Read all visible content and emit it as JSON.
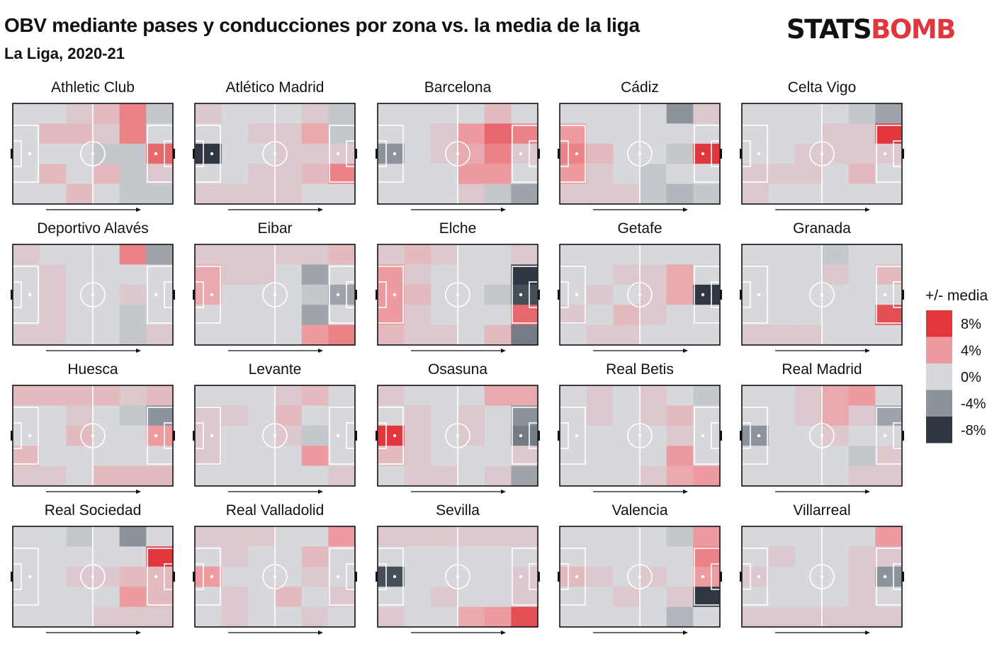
{
  "header": {
    "title": "OBV mediante pases y conducciones por zona vs. la media de la liga",
    "subtitle": "La Liga, 2020-21"
  },
  "logo": {
    "part1": "STATS",
    "part2": "BOMB",
    "text": "STATSBOMB"
  },
  "colors": {
    "scale": [
      "#2e3742",
      "#8c939b",
      "#d7d8dc",
      "#ee9ba0",
      "#e0363c"
    ],
    "zero": "#d7d8dc",
    "pitch_lines": "#ffffff",
    "pitch_border": "#111111",
    "arrow": "#111111"
  },
  "chart_data": {
    "type": "heatmap",
    "title": "OBV mediante pases y conducciones por zona vs. la media de la liga",
    "subtitle": "La Liga, 2020-21",
    "value_unit": "% vs. media de la liga",
    "grid": {
      "rows": 5,
      "cols": 6
    },
    "legend": {
      "title": "+/- media",
      "placement": "right",
      "values": [
        8,
        4,
        0,
        -4,
        -8
      ],
      "labels": [
        "8%",
        "4%",
        "0%",
        "-4%",
        "-8%"
      ]
    },
    "teams": [
      {
        "name": "Athletic Club",
        "values": [
          [
            0,
            0,
            1,
            2,
            5,
            -1
          ],
          [
            0,
            2,
            2,
            1,
            5,
            0
          ],
          [
            0,
            0,
            0,
            -1,
            -1,
            6
          ],
          [
            0,
            2,
            0,
            2,
            -1,
            1
          ],
          [
            0,
            0,
            2,
            0,
            -1,
            -1
          ]
        ]
      },
      {
        "name": "Atlético Madrid",
        "values": [
          [
            1,
            0,
            0,
            0,
            1,
            -1
          ],
          [
            0,
            0,
            1,
            1,
            3,
            -1
          ],
          [
            -8,
            0,
            0,
            1,
            1,
            1
          ],
          [
            0,
            0,
            1,
            1,
            2,
            5
          ],
          [
            1,
            1,
            1,
            1,
            0,
            0
          ]
        ]
      },
      {
        "name": "Barcelona",
        "values": [
          [
            0,
            0,
            0,
            0,
            2,
            0
          ],
          [
            0,
            0,
            1,
            4,
            6,
            5
          ],
          [
            -4,
            0,
            1,
            3,
            5,
            1
          ],
          [
            0,
            0,
            0,
            4,
            4,
            0
          ],
          [
            0,
            0,
            0,
            1,
            -1,
            -3
          ]
        ]
      },
      {
        "name": "Cádiz",
        "values": [
          [
            0,
            0,
            0,
            0,
            -4,
            1
          ],
          [
            4,
            0,
            0,
            0,
            0,
            0
          ],
          [
            5,
            2,
            0,
            0,
            -1,
            8
          ],
          [
            4,
            1,
            0,
            -1,
            0,
            0
          ],
          [
            1,
            1,
            1,
            -1,
            -2,
            -1
          ]
        ]
      },
      {
        "name": "Celta Vigo",
        "values": [
          [
            0,
            0,
            0,
            0,
            -1,
            -3
          ],
          [
            0,
            0,
            0,
            1,
            1,
            9
          ],
          [
            0,
            0,
            1,
            1,
            1,
            1
          ],
          [
            1,
            1,
            1,
            0,
            2,
            0
          ],
          [
            1,
            0,
            0,
            0,
            0,
            0
          ]
        ]
      },
      {
        "name": "Deportivo Alavés",
        "values": [
          [
            1,
            0,
            0,
            0,
            5,
            -3
          ],
          [
            0,
            1,
            0,
            0,
            0,
            0
          ],
          [
            0,
            1,
            0,
            0,
            1,
            0
          ],
          [
            0,
            1,
            0,
            0,
            -1,
            0
          ],
          [
            1,
            1,
            0,
            0,
            -1,
            1
          ]
        ]
      },
      {
        "name": "Eibar",
        "values": [
          [
            1,
            1,
            1,
            1,
            1,
            2
          ],
          [
            3,
            1,
            1,
            0,
            -3,
            0
          ],
          [
            3,
            0,
            0,
            0,
            -1,
            -3
          ],
          [
            0,
            0,
            0,
            0,
            -3,
            0
          ],
          [
            0,
            0,
            0,
            0,
            4,
            5
          ]
        ]
      },
      {
        "name": "Elche",
        "values": [
          [
            1,
            2,
            1,
            0,
            0,
            1
          ],
          [
            4,
            1,
            0,
            0,
            0,
            -8
          ],
          [
            4,
            2,
            0,
            0,
            -1,
            -7
          ],
          [
            4,
            1,
            0,
            0,
            0,
            6
          ],
          [
            2,
            1,
            1,
            0,
            2,
            -5
          ]
        ]
      },
      {
        "name": "Getafe",
        "values": [
          [
            0,
            0,
            0,
            0,
            0,
            0
          ],
          [
            0,
            0,
            1,
            1,
            3,
            0
          ],
          [
            0,
            1,
            0,
            1,
            3,
            -9
          ],
          [
            1,
            0,
            2,
            1,
            0,
            0
          ],
          [
            0,
            1,
            1,
            0,
            0,
            0
          ]
        ]
      },
      {
        "name": "Granada",
        "values": [
          [
            0,
            0,
            0,
            -1,
            0,
            0
          ],
          [
            0,
            0,
            0,
            1,
            0,
            2
          ],
          [
            0,
            0,
            0,
            0,
            0,
            0
          ],
          [
            0,
            0,
            0,
            0,
            0,
            7
          ],
          [
            1,
            1,
            1,
            0,
            0,
            0
          ]
        ]
      },
      {
        "name": "Huesca",
        "values": [
          [
            2,
            2,
            2,
            2,
            1,
            2
          ],
          [
            0,
            0,
            1,
            0,
            -1,
            -4
          ],
          [
            0,
            0,
            2,
            0,
            0,
            4
          ],
          [
            2,
            0,
            0,
            0,
            0,
            0
          ],
          [
            1,
            1,
            0,
            2,
            2,
            2
          ]
        ]
      },
      {
        "name": "Levante",
        "values": [
          [
            0,
            0,
            0,
            1,
            2,
            0
          ],
          [
            1,
            1,
            0,
            2,
            0,
            0
          ],
          [
            1,
            0,
            0,
            1,
            -1,
            0
          ],
          [
            1,
            0,
            0,
            0,
            4,
            0
          ],
          [
            0,
            0,
            0,
            0,
            0,
            1
          ]
        ]
      },
      {
        "name": "Osasuna",
        "values": [
          [
            1,
            0,
            0,
            0,
            3,
            3
          ],
          [
            0,
            1,
            0,
            1,
            0,
            -4
          ],
          [
            8,
            1,
            0,
            1,
            0,
            -5
          ],
          [
            2,
            1,
            0,
            0,
            0,
            1
          ],
          [
            0,
            1,
            1,
            0,
            1,
            -3
          ]
        ]
      },
      {
        "name": "Real Betis",
        "values": [
          [
            0,
            1,
            0,
            1,
            0,
            -1
          ],
          [
            0,
            1,
            0,
            1,
            2,
            0
          ],
          [
            0,
            0,
            0,
            0,
            1,
            0
          ],
          [
            0,
            0,
            0,
            0,
            4,
            0
          ],
          [
            0,
            0,
            0,
            1,
            3,
            4
          ]
        ]
      },
      {
        "name": "Real Madrid",
        "values": [
          [
            0,
            0,
            1,
            3,
            4,
            0
          ],
          [
            0,
            0,
            1,
            3,
            1,
            -3
          ],
          [
            -4,
            0,
            0,
            1,
            0,
            0
          ],
          [
            0,
            0,
            0,
            0,
            -1,
            1
          ],
          [
            0,
            0,
            0,
            0,
            1,
            1
          ]
        ]
      },
      {
        "name": "Real Sociedad",
        "values": [
          [
            0,
            0,
            -1,
            0,
            -4,
            0
          ],
          [
            0,
            0,
            0,
            0,
            0,
            9
          ],
          [
            0,
            0,
            1,
            1,
            2,
            2
          ],
          [
            0,
            0,
            0,
            0,
            4,
            2
          ],
          [
            0,
            0,
            0,
            1,
            1,
            1
          ]
        ]
      },
      {
        "name": "Real Valladolid",
        "values": [
          [
            1,
            1,
            1,
            0,
            0,
            4
          ],
          [
            0,
            1,
            0,
            0,
            2,
            0
          ],
          [
            4,
            0,
            0,
            0,
            1,
            0
          ],
          [
            0,
            1,
            0,
            2,
            0,
            1
          ],
          [
            0,
            1,
            0,
            0,
            1,
            0
          ]
        ]
      },
      {
        "name": "Sevilla",
        "values": [
          [
            1,
            1,
            1,
            1,
            1,
            1
          ],
          [
            0,
            0,
            0,
            0,
            0,
            0
          ],
          [
            -7,
            0,
            0,
            0,
            0,
            1
          ],
          [
            0,
            0,
            1,
            0,
            0,
            1
          ],
          [
            1,
            0,
            0,
            3,
            4,
            7
          ]
        ]
      },
      {
        "name": "Valencia",
        "values": [
          [
            0,
            0,
            0,
            0,
            -1,
            4
          ],
          [
            0,
            0,
            0,
            0,
            0,
            5
          ],
          [
            2,
            1,
            0,
            1,
            0,
            4
          ],
          [
            0,
            0,
            1,
            0,
            1,
            -8
          ],
          [
            0,
            0,
            0,
            0,
            -2,
            0
          ]
        ]
      },
      {
        "name": "Villarreal",
        "values": [
          [
            0,
            0,
            0,
            0,
            0,
            4
          ],
          [
            0,
            1,
            0,
            0,
            1,
            1
          ],
          [
            1,
            0,
            0,
            0,
            1,
            -4
          ],
          [
            0,
            0,
            0,
            0,
            1,
            0
          ],
          [
            1,
            1,
            1,
            1,
            1,
            1
          ]
        ]
      }
    ]
  }
}
